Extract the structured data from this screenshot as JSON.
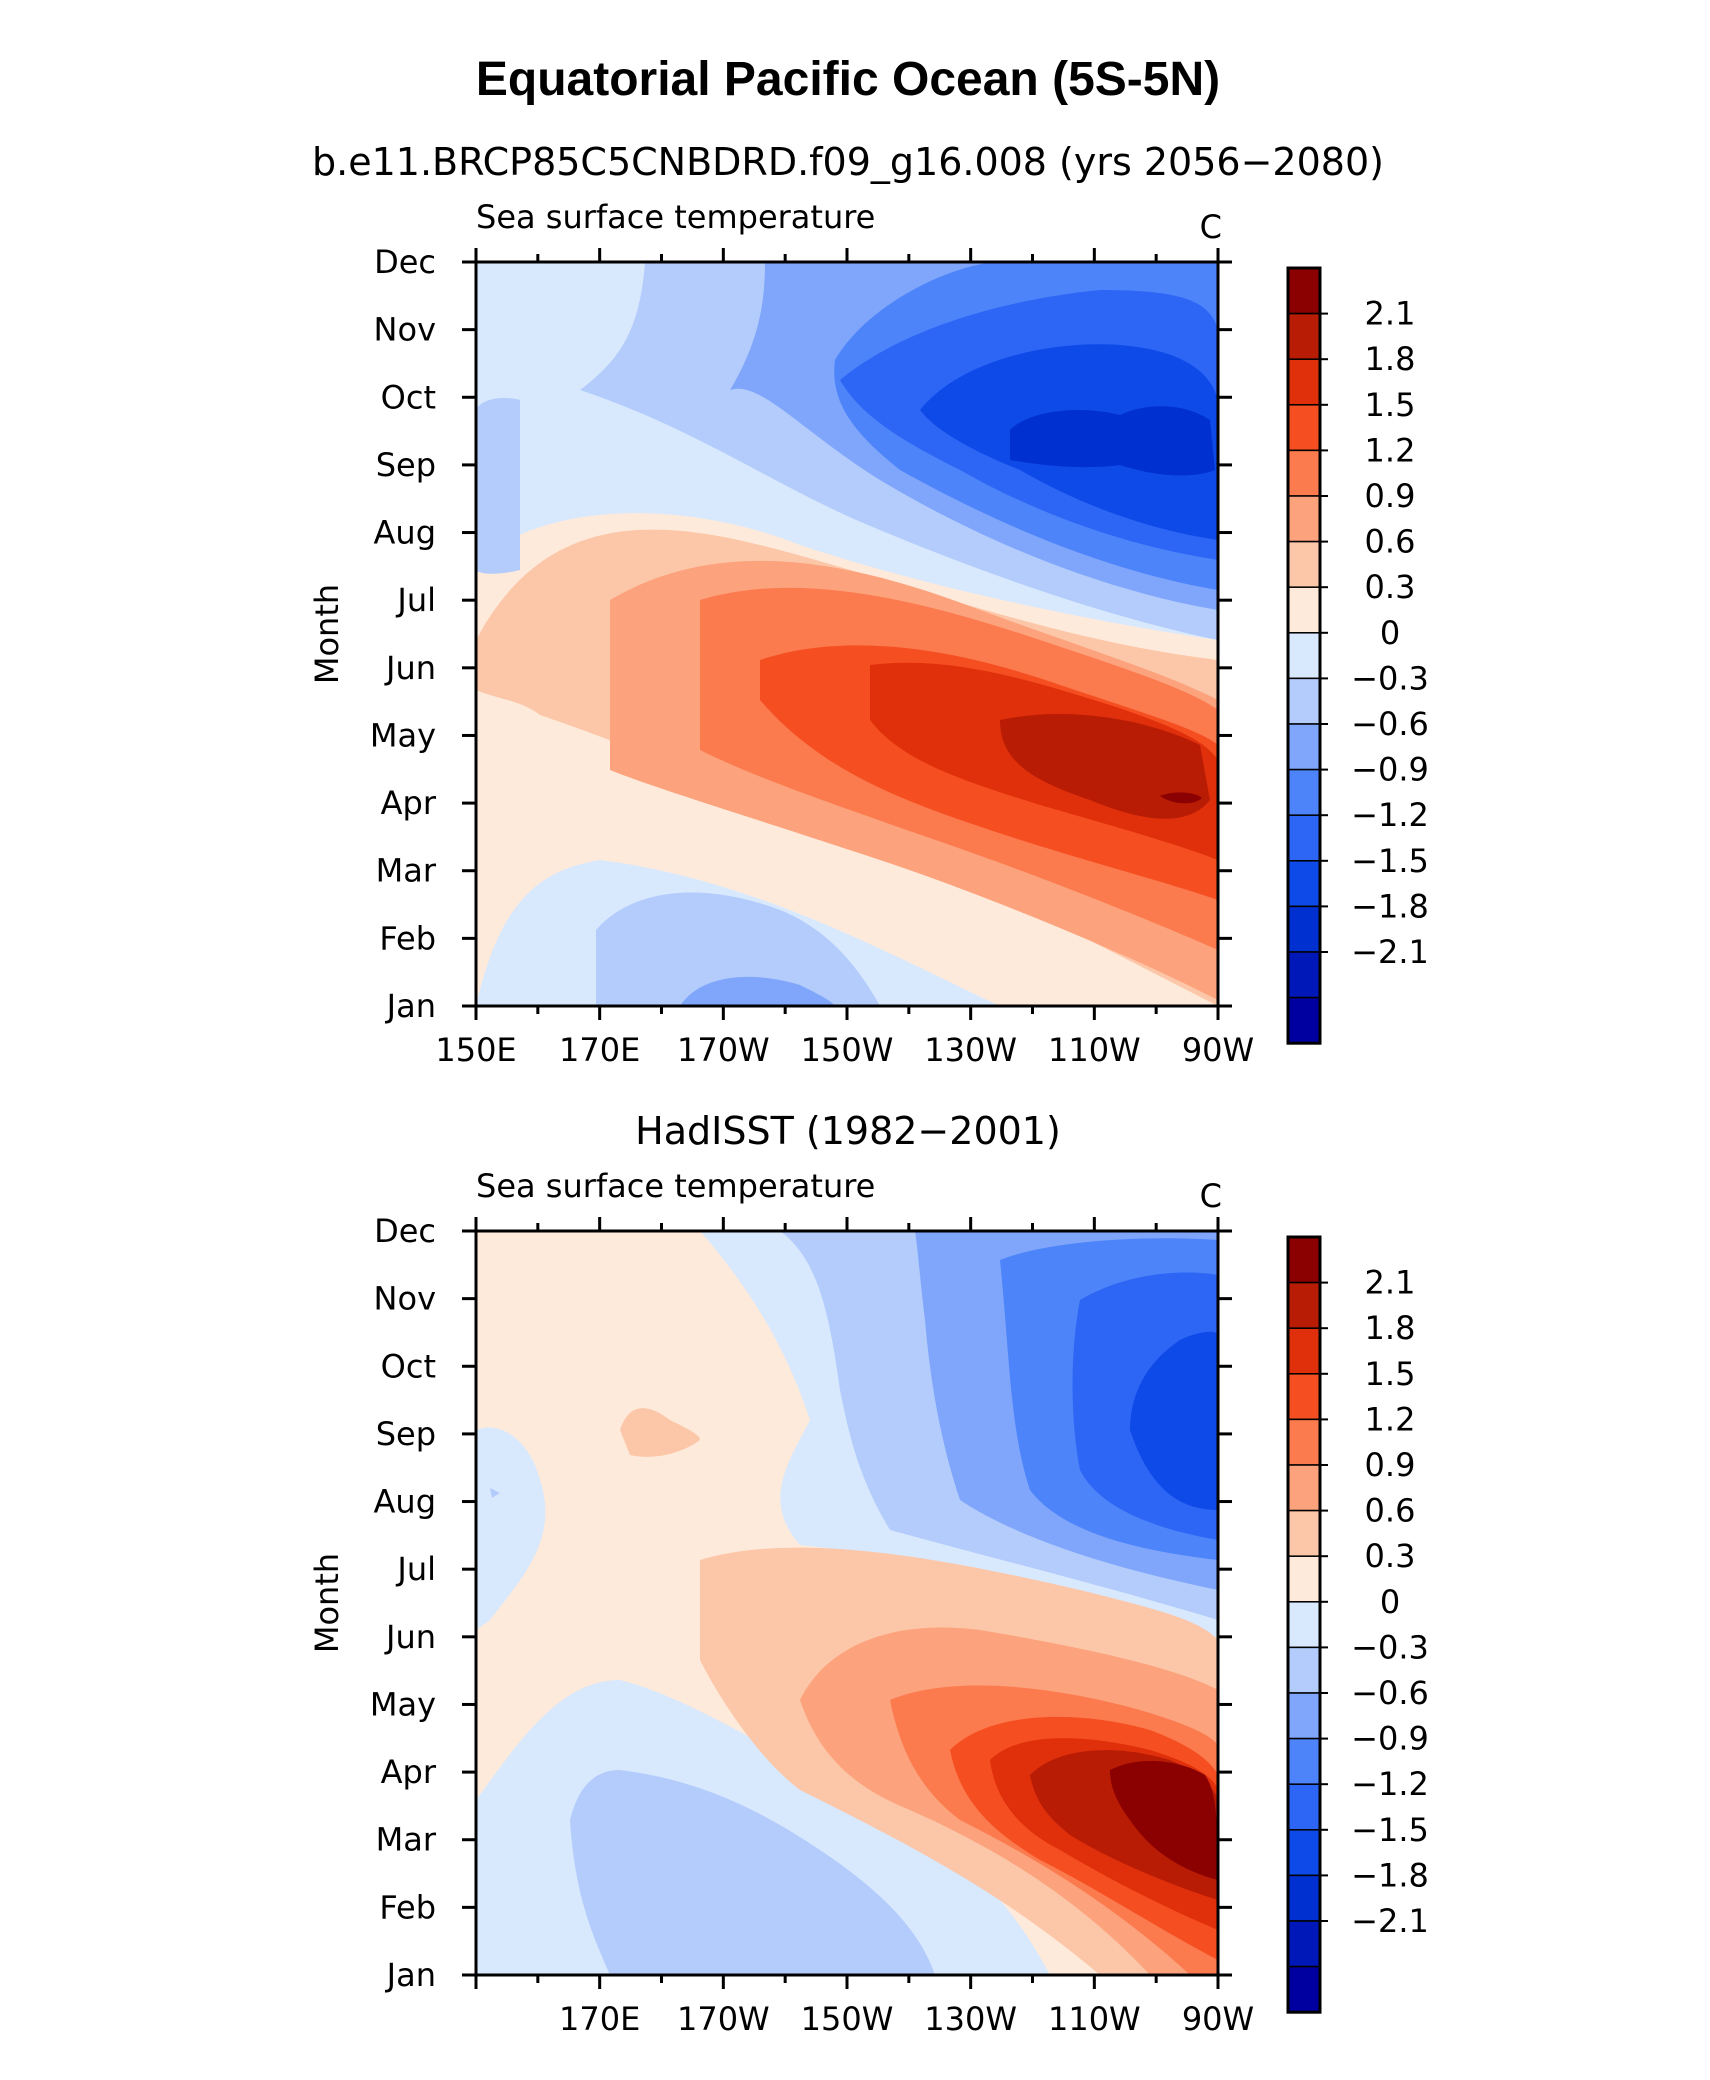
{
  "title": "Equatorial Pacific Ocean (5S-5N)",
  "chart_data": [
    {
      "type": "heatmap",
      "subtitle": "b.e11.BRCP85C5CNBDRD.f09_g16.008 (yrs 2056−2080)",
      "variable_label": "Sea surface temperature",
      "units": "C",
      "ylabel": "Month",
      "y_ticks": [
        "Jan",
        "Feb",
        "Mar",
        "Apr",
        "May",
        "Jun",
        "Jul",
        "Aug",
        "Sep",
        "Oct",
        "Nov",
        "Dec"
      ],
      "x_ticks": [
        "150E",
        "170E",
        "170W",
        "150W",
        "130W",
        "110W",
        "90W"
      ],
      "x_range": [
        150,
        270
      ],
      "colorbar_labels": [
        "2.1",
        "1.8",
        "1.5",
        "1.2",
        "0.9",
        "0.6",
        "0.3",
        "0",
        "−0.3",
        "−0.6",
        "−0.9",
        "−1.2",
        "−1.5",
        "−1.8",
        "−2.1"
      ],
      "contour_levels": [
        -2.1,
        -1.8,
        -1.5,
        -1.2,
        -0.9,
        -0.6,
        -0.3,
        0,
        0.3,
        0.6,
        0.9,
        1.2,
        1.5,
        1.8,
        2.1
      ],
      "approx_extremes": {
        "max": 2.2,
        "max_location": "95W, Apr",
        "min": -1.6,
        "min_location": "100W, Sep"
      }
    },
    {
      "type": "heatmap",
      "subtitle": "HadISST (1982−2001)",
      "variable_label": "Sea surface temperature",
      "units": "C",
      "ylabel": "Month",
      "y_ticks": [
        "Jan",
        "Feb",
        "Mar",
        "Apr",
        "May",
        "Jun",
        "Jul",
        "Aug",
        "Sep",
        "Oct",
        "Nov",
        "Dec"
      ],
      "x_ticks": [
        "170E",
        "170W",
        "150W",
        "130W",
        "110W",
        "90W"
      ],
      "x_range": [
        150,
        270
      ],
      "colorbar_labels": [
        "2.1",
        "1.8",
        "1.5",
        "1.2",
        "0.9",
        "0.6",
        "0.3",
        "0",
        "−0.3",
        "−0.6",
        "−0.9",
        "−1.2",
        "−1.5",
        "−1.8",
        "−2.1"
      ],
      "contour_levels": [
        -2.1,
        -1.8,
        -1.5,
        -1.2,
        -0.9,
        -0.6,
        -0.3,
        0,
        0.3,
        0.6,
        0.9,
        1.2,
        1.5,
        1.8,
        2.1
      ],
      "approx_extremes": {
        "max": 2.4,
        "max_location": "95W, Mar",
        "min": -1.7,
        "min_location": "95W, Sep"
      }
    }
  ],
  "colorbar_colors": [
    "#0000a0",
    "#0018b8",
    "#0030d0",
    "#0e4ae8",
    "#2d66f5",
    "#4d84fa",
    "#7fa6fb",
    "#b3ccfc",
    "#d8e8fd",
    "#feeadb",
    "#fcc7a8",
    "#fca27c",
    "#fb7a4e",
    "#f54e21",
    "#e0300b",
    "#b91c05",
    "#8b0000"
  ]
}
